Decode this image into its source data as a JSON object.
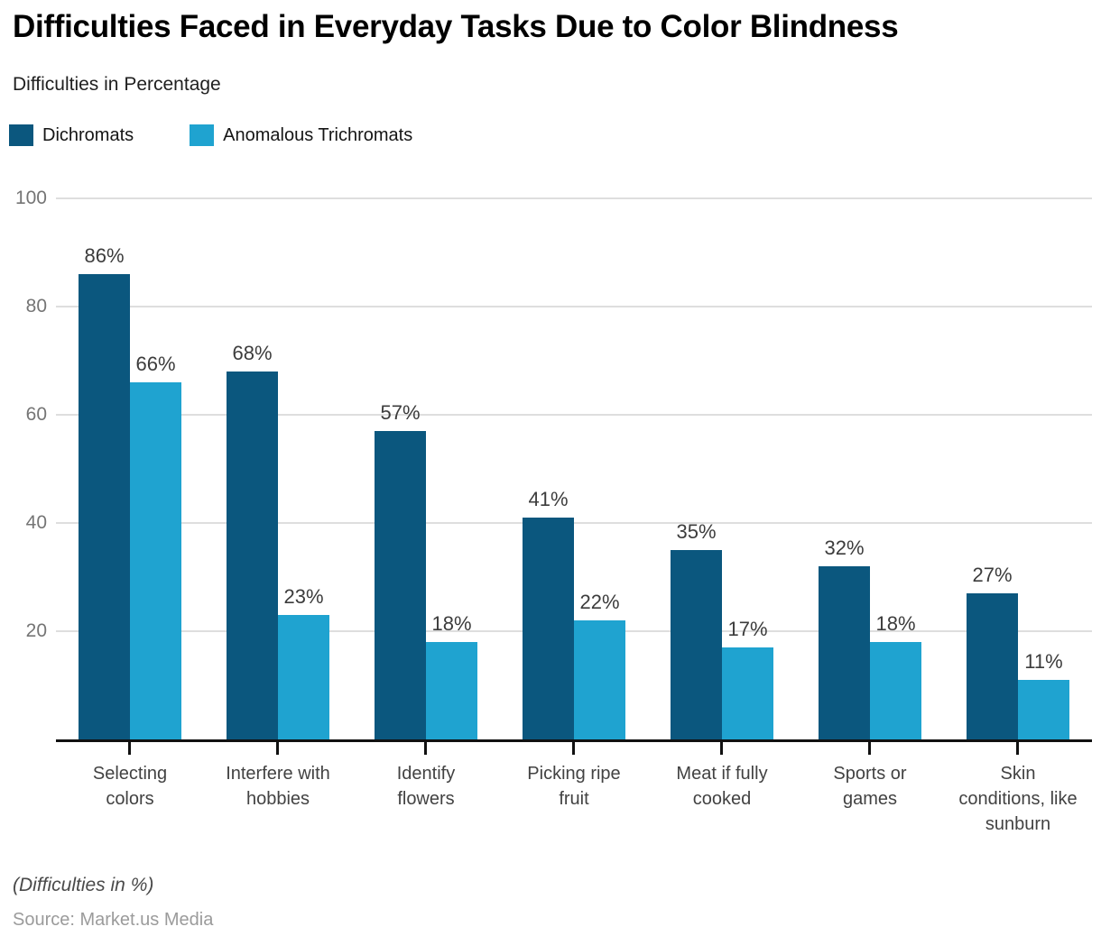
{
  "header": {
    "title": "Difficulties Faced in Everyday Tasks Due to Color Blindness",
    "subtitle": "Difficulties in Percentage"
  },
  "legend": {
    "items": [
      {
        "label": "Dichromats",
        "color": "#0b577e"
      },
      {
        "label": "Anomalous Trichromats",
        "color": "#1fa3d0"
      }
    ]
  },
  "chart_data": {
    "type": "bar",
    "title": "Difficulties Faced in Everyday Tasks Due to Color Blindness",
    "subtitle": "Difficulties in Percentage",
    "categories": [
      "Selecting colors",
      "Interfere with hobbies",
      "Identify flowers",
      "Picking ripe fruit",
      "Meat if fully cooked",
      "Sports or games",
      "Skin conditions, like sunburn"
    ],
    "series": [
      {
        "name": "Dichromats",
        "color": "#0b577e",
        "values": [
          86,
          68,
          57,
          41,
          35,
          32,
          27
        ],
        "labels": [
          "86%",
          "68%",
          "57%",
          "41%",
          "35%",
          "32%",
          "27%"
        ]
      },
      {
        "name": "Anomalous Trichromats",
        "color": "#1fa3d0",
        "values": [
          66,
          23,
          18,
          22,
          17,
          18,
          11
        ],
        "labels": [
          "66%",
          "23%",
          "18%",
          "22%",
          "17%",
          "18%",
          "11%"
        ]
      }
    ],
    "xlabel": "",
    "ylabel": "Difficulties in Percentage",
    "ylim": [
      0,
      100
    ],
    "yticks": [
      20,
      40,
      60,
      80,
      100
    ],
    "ytick_labels": [
      "20",
      "40",
      "60",
      "80",
      "100"
    ],
    "grid": true,
    "legend_position": "top-left",
    "value_suffix": "%"
  },
  "footer": {
    "note": "(Difficulties in %)",
    "source": "Source: Market.us Media"
  },
  "colors": {
    "dichromats": "#0b577e",
    "anomalous_trichromats": "#1fa3d0",
    "grid_line": "#dedede",
    "axis_line": "#111111",
    "ytick_label": "#757575",
    "value_label": "#3c3c3c",
    "category_label": "#424242",
    "background": "#ffffff"
  }
}
